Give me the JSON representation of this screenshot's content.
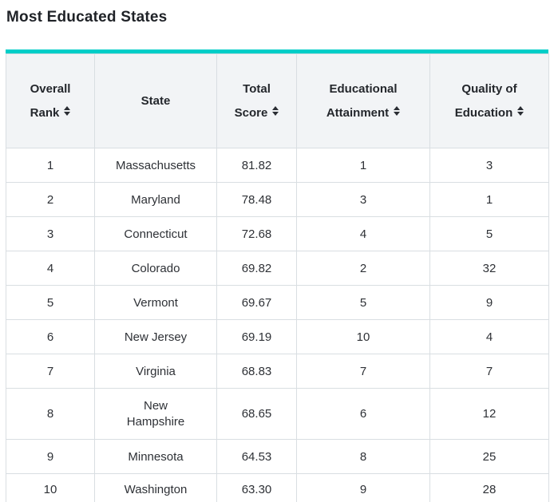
{
  "page": {
    "title": "Most Educated States"
  },
  "table": {
    "colors": {
      "accent": "#00CEC8",
      "header_bg": "#F2F4F6",
      "border": "#D9DEE2"
    },
    "columns": [
      {
        "key": "overall_rank",
        "label_lines": [
          "Overall",
          "Rank"
        ],
        "sortable": true
      },
      {
        "key": "state",
        "label_lines": [
          "State"
        ],
        "sortable": false
      },
      {
        "key": "total_score",
        "label_lines": [
          "Total",
          "Score"
        ],
        "sortable": true
      },
      {
        "key": "educational_attainment",
        "label_lines": [
          "Educational",
          "Attainment"
        ],
        "sortable": true
      },
      {
        "key": "quality_of_education",
        "label_lines": [
          "Quality of",
          "Education"
        ],
        "sortable": true
      }
    ],
    "rows": [
      {
        "overall_rank": "1",
        "state": "Massachusetts",
        "total_score": "81.82",
        "educational_attainment": "1",
        "quality_of_education": "3"
      },
      {
        "overall_rank": "2",
        "state": "Maryland",
        "total_score": "78.48",
        "educational_attainment": "3",
        "quality_of_education": "1"
      },
      {
        "overall_rank": "3",
        "state": "Connecticut",
        "total_score": "72.68",
        "educational_attainment": "4",
        "quality_of_education": "5"
      },
      {
        "overall_rank": "4",
        "state": "Colorado",
        "total_score": "69.82",
        "educational_attainment": "2",
        "quality_of_education": "32"
      },
      {
        "overall_rank": "5",
        "state": "Vermont",
        "total_score": "69.67",
        "educational_attainment": "5",
        "quality_of_education": "9"
      },
      {
        "overall_rank": "6",
        "state": "New Jersey",
        "total_score": "69.19",
        "educational_attainment": "10",
        "quality_of_education": "4"
      },
      {
        "overall_rank": "7",
        "state": "Virginia",
        "total_score": "68.83",
        "educational_attainment": "7",
        "quality_of_education": "7"
      },
      {
        "overall_rank": "8",
        "state": "New Hampshire",
        "total_score": "68.65",
        "educational_attainment": "6",
        "quality_of_education": "12"
      },
      {
        "overall_rank": "9",
        "state": "Minnesota",
        "total_score": "64.53",
        "educational_attainment": "8",
        "quality_of_education": "25"
      },
      {
        "overall_rank": "10",
        "state": "Washington",
        "total_score": "63.30",
        "educational_attainment": "9",
        "quality_of_education": "28"
      }
    ]
  }
}
